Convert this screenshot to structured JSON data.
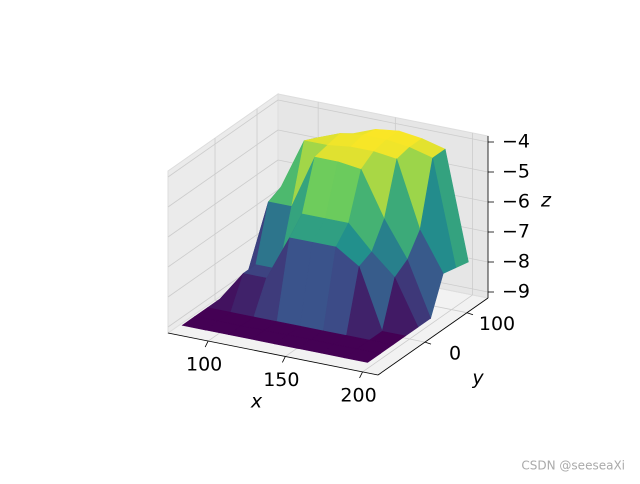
{
  "chart_data": {
    "type": "surface3d",
    "colormap": "viridis",
    "x_label": "x",
    "y_label": "y",
    "z_label": "z",
    "x": [
      80,
      95,
      110,
      125,
      140,
      155,
      170,
      185,
      200
    ],
    "y": [
      -100,
      -70,
      -40,
      -10,
      20,
      50,
      80,
      110,
      140
    ],
    "z": [
      [
        -9,
        -9,
        -9,
        -9,
        -9,
        -9,
        -9,
        -9,
        -9
      ],
      [
        -9,
        -9,
        -9,
        -9,
        -9,
        -9,
        -9,
        -9,
        -9
      ],
      [
        -9,
        -9,
        -9,
        -9,
        -9,
        -9,
        -9,
        -9,
        -9
      ],
      [
        -9,
        -8,
        -8,
        -6.5,
        -6.5,
        -6.5,
        -7,
        -9,
        -9
      ],
      [
        -9,
        -8,
        -8,
        -6,
        -6,
        -6,
        -6.8,
        -7.5,
        -9
      ],
      [
        -9,
        -6.2,
        -6.2,
        -4.4,
        -4.4,
        -4.5,
        -6,
        -7.2,
        -9
      ],
      [
        -9,
        -6,
        -4.3,
        -4.3,
        -4.2,
        -4.2,
        -4.3,
        -6.5,
        -7.8
      ],
      [
        -9,
        -6,
        -4.5,
        -4.2,
        -4.1,
        -4.1,
        -4.2,
        -4.4,
        -7.9
      ],
      [
        -9,
        -6,
        -5.5,
        -4.5,
        -4.2,
        -4.1,
        -4.2,
        -4.4,
        -8
      ]
    ],
    "xlim": [
      74,
      210
    ],
    "ylim": [
      -112,
      150
    ],
    "zlim": [
      -9.2,
      -3.8
    ],
    "xticks": [
      100,
      150,
      200
    ],
    "yticks": [
      0,
      100
    ],
    "zticks": [
      {
        "value": -9,
        "label": "−9"
      },
      {
        "value": -8,
        "label": "−8"
      },
      {
        "value": -7,
        "label": "−7"
      },
      {
        "value": -6,
        "label": "−6"
      },
      {
        "value": -5,
        "label": "−5"
      },
      {
        "value": -4,
        "label": "−4"
      }
    ],
    "grid": true
  },
  "watermark": "CSDN @seeseaXi"
}
